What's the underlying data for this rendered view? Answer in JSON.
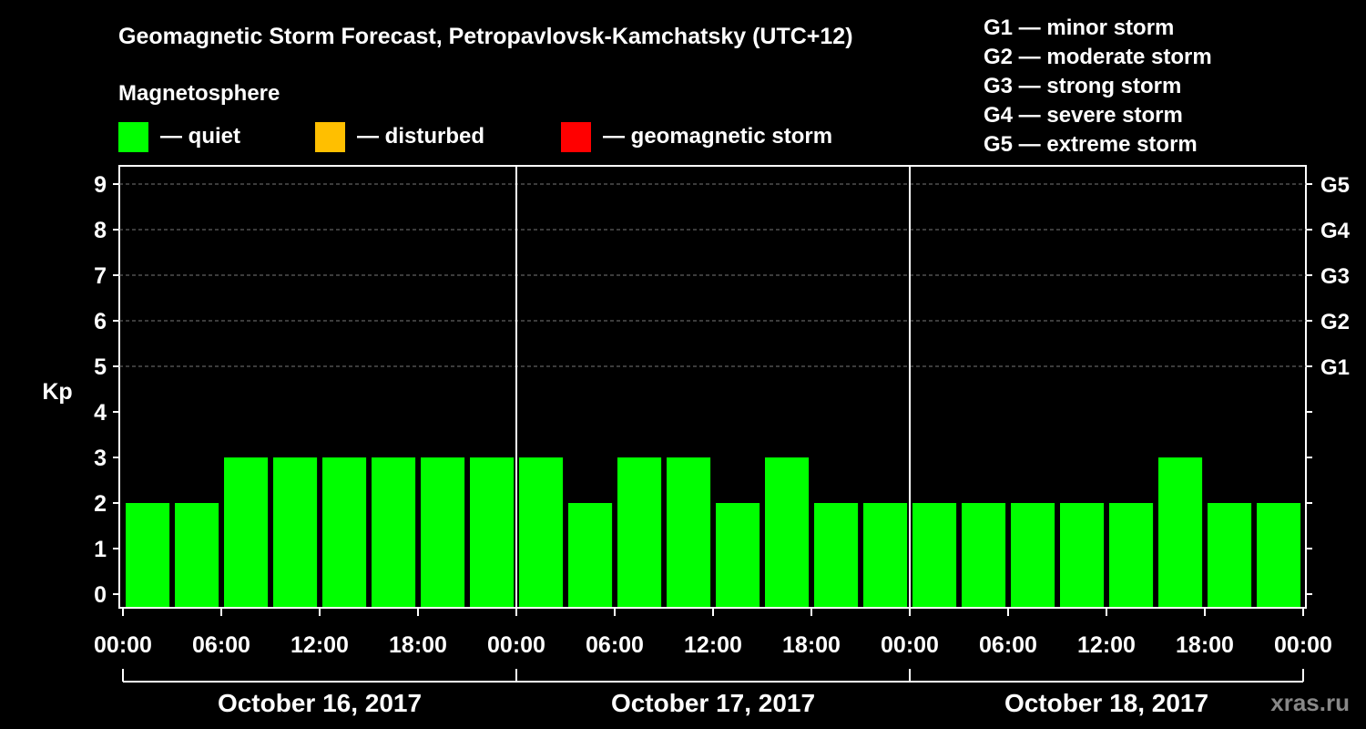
{
  "chart_data": {
    "type": "bar",
    "title": "Geomagnetic Storm Forecast, Petropavlovsk-Kamchatsky (UTC+12)",
    "legend_title": "Magnetosphere",
    "legend": [
      {
        "label": "— quiet",
        "color": "#00ff00"
      },
      {
        "label": "— disturbed",
        "color": "#ffbf00"
      },
      {
        "label": "— geomagnetic storm",
        "color": "#ff0000"
      }
    ],
    "storm_scale": [
      "G1 — minor storm",
      "G2 — moderate storm",
      "G3 — strong storm",
      "G4 — severe storm",
      "G5 — extreme storm"
    ],
    "ylabel": "Kp",
    "ylim": [
      0,
      9
    ],
    "y_ticks": [
      "0",
      "1",
      "2",
      "3",
      "4",
      "5",
      "6",
      "7",
      "8",
      "9"
    ],
    "g_levels": [
      {
        "label": "G1",
        "kp": 5
      },
      {
        "label": "G2",
        "kp": 6
      },
      {
        "label": "G3",
        "kp": 7
      },
      {
        "label": "G4",
        "kp": 8
      },
      {
        "label": "G5",
        "kp": 9
      }
    ],
    "x_tick_labels": [
      "00:00",
      "06:00",
      "12:00",
      "18:00",
      "00:00",
      "06:00",
      "12:00",
      "18:00",
      "00:00",
      "06:00",
      "12:00",
      "18:00",
      "00:00"
    ],
    "days": [
      "October 16, 2017",
      "October 17, 2017",
      "October 18, 2017"
    ],
    "interval_hours": 3,
    "values": [
      2,
      2,
      3,
      3,
      3,
      3,
      3,
      3,
      3,
      2,
      3,
      3,
      2,
      3,
      2,
      2,
      2,
      2,
      2,
      2,
      2,
      3,
      2,
      2
    ],
    "bar_color": "#00ff00"
  },
  "watermark": "xras.ru"
}
